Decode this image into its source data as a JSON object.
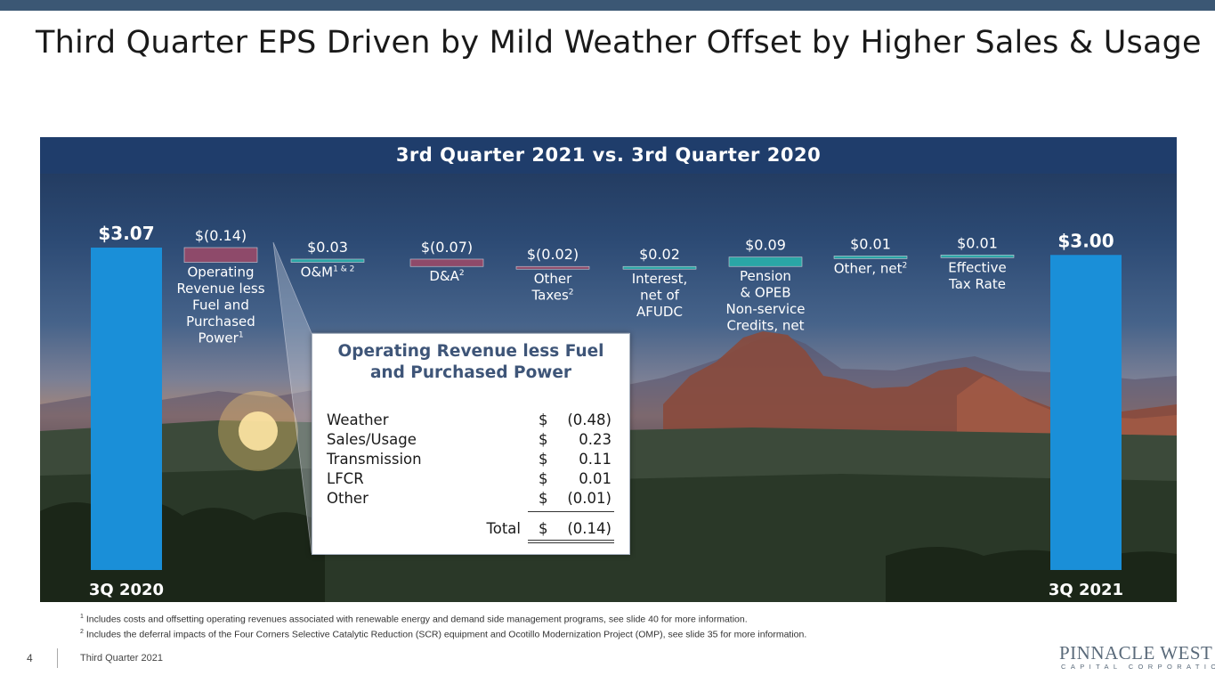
{
  "slide_title": "Third Quarter EPS Driven by Mild Weather Offset by Higher Sales & Usage",
  "panel_title": "3rd Quarter 2021 vs. 3rd Quarter 2020",
  "chart_data": {
    "type": "bar",
    "subtype": "waterfall",
    "title": "3rd Quarter 2021 vs. 3rd Quarter 2020",
    "start": {
      "category": "3Q 2020",
      "value": 3.07,
      "label": "$3.07"
    },
    "end": {
      "category": "3Q 2021",
      "value": 3.0,
      "label": "$3.00"
    },
    "steps": [
      {
        "lines": [
          "Operating",
          "Revenue less",
          "Fuel and",
          "Purchased",
          "Power"
        ],
        "sup": "1",
        "value": -0.14,
        "label": "$(0.14)",
        "color": "#8e4a6a"
      },
      {
        "lines": [
          "O&M"
        ],
        "sup": "1 & 2",
        "value": 0.03,
        "label": "$0.03",
        "color": "#2aa6a6"
      },
      {
        "lines": [
          "D&A"
        ],
        "sup": "2",
        "value": -0.07,
        "label": "$(0.07)",
        "color": "#8e4a6a"
      },
      {
        "lines": [
          "Other",
          "Taxes"
        ],
        "sup": "2",
        "value": -0.02,
        "label": "$(0.02)",
        "color": "#8e4a6a"
      },
      {
        "lines": [
          "Interest,",
          "net of",
          "AFUDC"
        ],
        "sup": "",
        "value": 0.02,
        "label": "$0.02",
        "color": "#2aa6a6"
      },
      {
        "lines": [
          "Pension",
          "& OPEB",
          "Non-service",
          "Credits, net"
        ],
        "sup": "",
        "value": 0.09,
        "label": "$0.09",
        "color": "#2aa6a6"
      },
      {
        "lines": [
          "Other, net"
        ],
        "sup": "2",
        "value": 0.01,
        "label": "$0.01",
        "color": "#2aa6a6"
      },
      {
        "lines": [
          "Effective",
          "Tax Rate"
        ],
        "sup": "",
        "value": 0.01,
        "label": "$0.01",
        "color": "#2aa6a6"
      }
    ],
    "endpoint_color": "#1a8fd8",
    "ylim": [
      0,
      3.1
    ]
  },
  "inset": {
    "title_line1": "Operating Revenue less Fuel",
    "title_line2": "and Purchased Power",
    "rows": [
      {
        "name": "Weather",
        "dollar": "$",
        "value": "(0.48)"
      },
      {
        "name": "Sales/Usage",
        "dollar": "$",
        "value": "0.23"
      },
      {
        "name": "Transmission",
        "dollar": "$",
        "value": "0.11"
      },
      {
        "name": "LFCR",
        "dollar": "$",
        "value": "0.01"
      },
      {
        "name": "Other",
        "dollar": "$",
        "value": "(0.01)"
      }
    ],
    "total_label": "Total",
    "total_dollar": "$",
    "total_value": "(0.14)"
  },
  "footnotes": [
    {
      "mark": "1",
      "text": "Includes costs and offsetting operating revenues associated with renewable energy and demand side management programs, see slide 40 for more information."
    },
    {
      "mark": "2",
      "text": "Includes the deferral impacts of the Four Corners Selective Catalytic Reduction (SCR) equipment and Ocotillo Modernization Project (OMP), see slide 35 for more information."
    }
  ],
  "footer": {
    "page_number": "4",
    "text": "Third Quarter 2021"
  },
  "logo": {
    "main": "PINNACLE WEST",
    "sub": "CAPITAL CORPORATION"
  }
}
